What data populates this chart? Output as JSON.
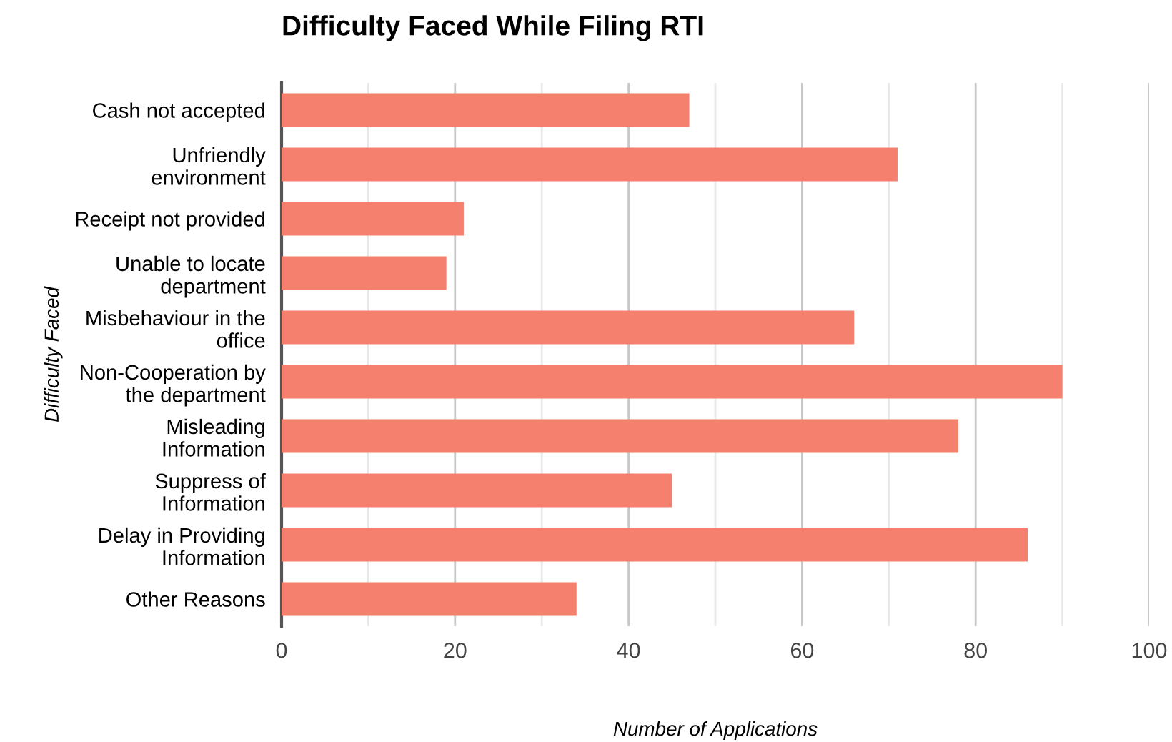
{
  "chart_data": {
    "type": "bar",
    "orientation": "horizontal",
    "title": "Difficulty Faced While Filing RTI",
    "xlabel": "Number of Applications",
    "ylabel": "Difficulty Faced",
    "categories": [
      "Cash not accepted",
      "Unfriendly\nenvironment",
      "Receipt not provided",
      "Unable to locate\ndepartment",
      "Misbehaviour in the\noffice",
      "Non-Cooperation by\nthe department",
      "Misleading\nInformation",
      "Suppress of\nInformation",
      "Delay in Providing\nInformation",
      "Other Reasons"
    ],
    "values": [
      47,
      71,
      21,
      19,
      66,
      90,
      78,
      45,
      86,
      34
    ],
    "color": "#f4806d",
    "xlim": [
      0,
      100
    ],
    "xticks": [
      0,
      {
        "value": 10,
        "label": null
      },
      20,
      {
        "value": 30,
        "label": null
      },
      40,
      {
        "value": 50,
        "label": null
      },
      60,
      {
        "value": 70,
        "label": null
      },
      80,
      {
        "value": 90,
        "label": null
      },
      100
    ],
    "grid": "x",
    "legend": false
  }
}
